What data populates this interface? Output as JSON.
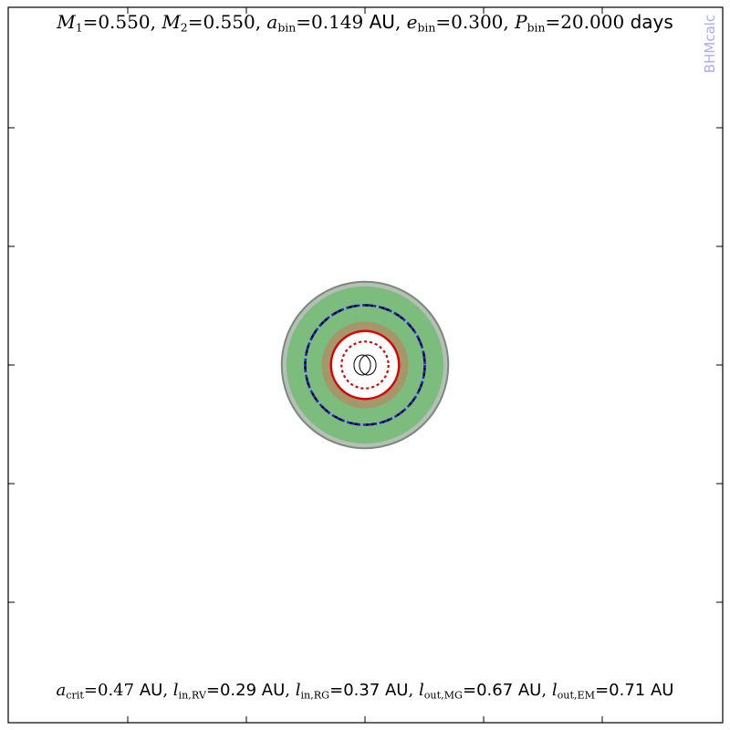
{
  "header": {
    "m1_symbol": "M",
    "m1_sub": "1",
    "m1_value": "=0.550",
    "m2_symbol": "M",
    "m2_sub": "2",
    "m2_value": "=0.550",
    "abin_symbol": "a",
    "abin_sub": "bin",
    "abin_value": "=0.149",
    "abin_unit": "AU",
    "ebin_symbol": "e",
    "ebin_sub": "bin",
    "ebin_value": "=0.300",
    "pbin_symbol": "P",
    "pbin_sub": "bin",
    "pbin_value": "=20.000",
    "pbin_unit": "days"
  },
  "footer": {
    "acrit_symbol": "a",
    "acrit_sub": "crit",
    "acrit_value": "=0.47",
    "acrit_unit": "AU",
    "lin_rv_symbol": "l",
    "lin_rv_sub": "in,RV",
    "lin_rv_value": "=0.29 AU",
    "lin_rg_symbol": "l",
    "lin_rg_sub": "in,RG",
    "lin_rg_value": "=0.37 AU",
    "lout_mg_symbol": "l",
    "lout_mg_sub": "out,MG",
    "lout_mg_value": "=0.67 AU",
    "lout_em_symbol": "l",
    "lout_em_sub": "out,EM",
    "lout_em_value": "=0.71 AU"
  },
  "watermark": "BHMcalc",
  "chart_data": {
    "type": "habitable-zone-diagram",
    "units": "AU",
    "grid": false,
    "radii": {
      "a_crit": 0.47,
      "l_in_RV": 0.29,
      "l_in_RG": 0.37,
      "l_out_MG": 0.67,
      "l_out_EM": 0.71
    },
    "binary": {
      "a_bin": 0.149,
      "e_bin": 0.3
    },
    "colors": {
      "outer_zone": "#7cbc7c",
      "inner_zone": "#a8926a",
      "zone_edge": "#7a8a7a",
      "a_crit_circle": "#e00000",
      "dashed_inner": "#e00000",
      "dashed_outer_blue": "#2020e0",
      "dashed_outer_black": "#000000",
      "orbits": "#000000"
    }
  }
}
